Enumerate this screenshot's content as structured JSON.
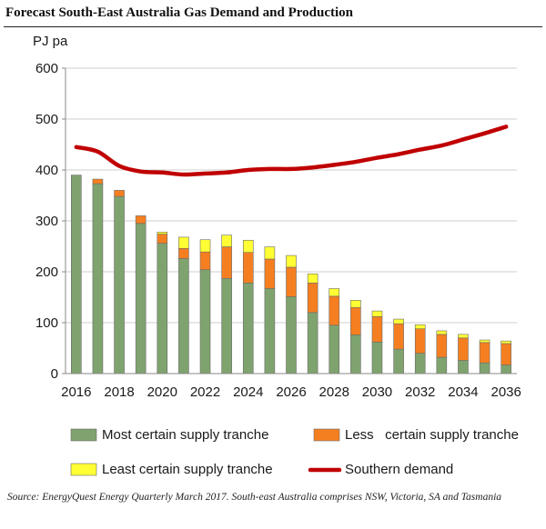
{
  "title": "Forecast South-East Australia Gas Demand and Production",
  "source": "Source: EnergyQuest Energy Quarterly March 2017. South-east Australia comprises NSW, Victoria, SA and Tasmania",
  "chart_data": {
    "type": "bar",
    "stacked": true,
    "ylabel": "PJ pa",
    "ylim": [
      0,
      600
    ],
    "yticks": [
      0,
      100,
      200,
      300,
      400,
      500,
      600
    ],
    "grid": true,
    "legend_position": "bottom",
    "x": [
      2016,
      2017,
      2018,
      2019,
      2020,
      2021,
      2022,
      2023,
      2024,
      2025,
      2026,
      2027,
      2028,
      2029,
      2030,
      2031,
      2032,
      2033,
      2034,
      2035,
      2036
    ],
    "xticks": [
      2016,
      2018,
      2020,
      2022,
      2024,
      2026,
      2028,
      2030,
      2032,
      2034,
      2036
    ],
    "series": [
      {
        "name": "Most certain supply tranche",
        "kind": "bar",
        "color": "#7fa36e",
        "values": [
          390,
          373,
          348,
          295,
          256,
          226,
          204,
          187,
          178,
          167,
          151,
          120,
          95,
          76,
          62,
          48,
          40,
          32,
          26,
          21,
          17
        ]
      },
      {
        "name": "Less   certain supply tranche",
        "kind": "bar",
        "color": "#f57f20",
        "values": [
          0,
          9,
          12,
          15,
          18,
          20,
          35,
          62,
          60,
          58,
          58,
          58,
          57,
          54,
          50,
          50,
          48,
          45,
          44,
          40,
          42
        ]
      },
      {
        "name": "Least certain supply tranche",
        "kind": "bar",
        "color": "#ffff33",
        "values": [
          0,
          0,
          0,
          0,
          4,
          22,
          24,
          23,
          24,
          24,
          23,
          18,
          15,
          14,
          11,
          9,
          8,
          7,
          7,
          5,
          5
        ]
      },
      {
        "name": "Southern demand",
        "kind": "line",
        "color": "#c00000",
        "values": [
          445,
          436,
          408,
          397,
          395,
          391,
          393,
          395,
          400,
          402,
          402,
          405,
          410,
          416,
          424,
          431,
          440,
          448,
          460,
          472,
          485
        ]
      }
    ]
  }
}
